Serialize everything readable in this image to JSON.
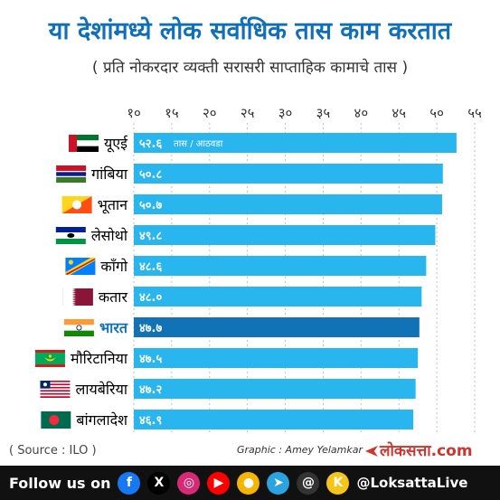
{
  "header": {
    "title": "या देशांमध्ये लोक सर्वाधिक तास काम करतात",
    "subtitle": "( प्रति नोकरदार व्यक्ती सरासरी साप्ताहिक कामाचे तास )"
  },
  "chart_data": {
    "type": "bar",
    "orientation": "horizontal",
    "xlim": [
      10,
      55
    ],
    "ticks": [
      10,
      15,
      20,
      25,
      30,
      35,
      40,
      45,
      50,
      55
    ],
    "tick_labels": [
      "१०",
      "१५",
      "२०",
      "२५",
      "३०",
      "३५",
      "४०",
      "४५",
      "५०",
      "५५"
    ],
    "unit_note": "तास / आठवडा",
    "categories": [
      "यूएई",
      "गांबिया",
      "भूतान",
      "लेसोथो",
      "काँगो",
      "कतार",
      "भारत",
      "मौरिटानिया",
      "लायबेरिया",
      "बांगलादेश"
    ],
    "values": [
      52.6,
      50.8,
      50.7,
      49.8,
      48.6,
      48.0,
      47.7,
      47.5,
      47.2,
      46.9
    ],
    "value_labels": [
      "५२.६",
      "५०.८",
      "५०.७",
      "४९.८",
      "४८.६",
      "४८.०",
      "४७.७",
      "४७.५",
      "४७.२",
      "४६.९"
    ],
    "highlight": "भारत",
    "colors": {
      "bar": "#29b6ef",
      "highlight_bar": "#1173b5",
      "label": "#000000",
      "highlight_label": "#1173b5",
      "grid": "#bfbfbf"
    },
    "grid": true
  },
  "footer": {
    "source": "( Source : ILO )",
    "credit": "Graphic : Amey Yelamkar",
    "brand": "लोकसत्ता.com",
    "follow_label": "Follow us on",
    "handle": "@LoksattaLive",
    "social_icons": [
      {
        "name": "facebook-icon",
        "glyph": "f",
        "color": "#1877f2"
      },
      {
        "name": "x-icon",
        "glyph": "X",
        "color": "#000000"
      },
      {
        "name": "instagram-icon",
        "glyph": "◎",
        "color": "#d62976"
      },
      {
        "name": "youtube-icon",
        "glyph": "▶",
        "color": "#ff0000"
      },
      {
        "name": "sharechat-icon",
        "glyph": "●",
        "color": "#f4b400"
      },
      {
        "name": "telegram-icon",
        "glyph": "➤",
        "color": "#2aa3df"
      },
      {
        "name": "threads-icon",
        "glyph": "@",
        "color": "#333333"
      },
      {
        "name": "koo-icon",
        "glyph": "K",
        "color": "#f5c518"
      }
    ]
  }
}
